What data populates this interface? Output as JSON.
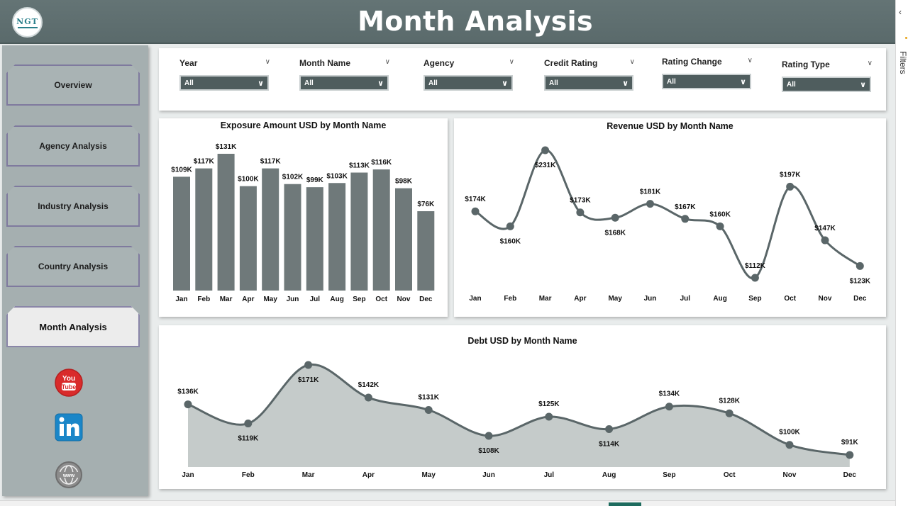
{
  "header": {
    "title": "Month Analysis",
    "logo_text": "NGT"
  },
  "right_panel": {
    "label": "Filters"
  },
  "nav": [
    {
      "label": "Overview",
      "active": false
    },
    {
      "label": "Agency Analysis",
      "active": false
    },
    {
      "label": "Industry Analysis",
      "active": false
    },
    {
      "label": "Country Analysis",
      "active": false
    },
    {
      "label": "Month Analysis",
      "active": true
    }
  ],
  "social": {
    "youtube": "youtube-icon",
    "linkedin": "linkedin-icon",
    "web": "globe-icon"
  },
  "filters": [
    {
      "label": "Year",
      "value": "All"
    },
    {
      "label": "Month Name",
      "value": "All"
    },
    {
      "label": "Agency",
      "value": "All"
    },
    {
      "label": "Credit Rating",
      "value": "All"
    },
    {
      "label": "Rating Change",
      "value": "All"
    },
    {
      "label": "Rating Type",
      "value": "All"
    }
  ],
  "colors": {
    "header": "#5f6f70",
    "bar": "#6f797a",
    "line": "#5a6668",
    "area": "#c5cbca",
    "sidebar": "#a5afb0"
  },
  "chart_data": [
    {
      "type": "bar",
      "title": "Exposure Amount USD by Month Name",
      "categories": [
        "Jan",
        "Feb",
        "Mar",
        "Apr",
        "May",
        "Jun",
        "Jul",
        "Aug",
        "Sep",
        "Oct",
        "Nov",
        "Dec"
      ],
      "values": [
        109,
        117,
        131,
        100,
        117,
        102,
        99,
        103,
        113,
        116,
        98,
        76
      ],
      "labels": [
        "$109K",
        "$117K",
        "$131K",
        "$100K",
        "$117K",
        "$102K",
        "$99K",
        "$103K",
        "$113K",
        "$116K",
        "$98K",
        "$76K"
      ]
    },
    {
      "type": "line",
      "title": "Revenue USD by Month Name",
      "categories": [
        "Jan",
        "Feb",
        "Mar",
        "Apr",
        "May",
        "Jun",
        "Jul",
        "Aug",
        "Sep",
        "Oct",
        "Nov",
        "Dec"
      ],
      "values": [
        174,
        160,
        231,
        173,
        168,
        181,
        167,
        160,
        112,
        197,
        147,
        123
      ],
      "labels": [
        "$174K",
        "$160K",
        "$231K",
        "$173K",
        "$168K",
        "$181K",
        "$167K",
        "$160K",
        "$112K",
        "$197K",
        "$147K",
        "$123K"
      ]
    },
    {
      "type": "area",
      "title": "Debt USD by Month Name",
      "categories": [
        "Jan",
        "Feb",
        "Mar",
        "Apr",
        "May",
        "Jun",
        "Jul",
        "Aug",
        "Sep",
        "Oct",
        "Nov",
        "Dec"
      ],
      "values": [
        136,
        119,
        171,
        142,
        131,
        108,
        125,
        114,
        134,
        128,
        100,
        91
      ],
      "labels": [
        "$136K",
        "$119K",
        "$171K",
        "$142K",
        "$131K",
        "$108K",
        "$125K",
        "$114K",
        "$134K",
        "$128K",
        "$100K",
        "$91K"
      ]
    }
  ]
}
